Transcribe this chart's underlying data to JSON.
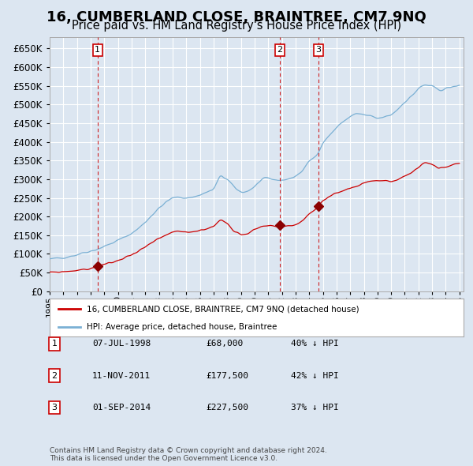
{
  "title": "16, CUMBERLAND CLOSE, BRAINTREE, CM7 9NQ",
  "subtitle": "Price paid vs. HM Land Registry's House Price Index (HPI)",
  "title_fontsize": 13,
  "subtitle_fontsize": 10.5,
  "background_color": "#dce6f1",
  "plot_bg_color": "#dce6f1",
  "grid_color": "#ffffff",
  "hpi_color": "#7ab0d4",
  "price_color": "#cc0000",
  "ylim": [
    0,
    680000
  ],
  "yticks": [
    0,
    50000,
    100000,
    150000,
    200000,
    250000,
    300000,
    350000,
    400000,
    450000,
    500000,
    550000,
    600000,
    650000
  ],
  "legend_label_price": "16, CUMBERLAND CLOSE, BRAINTREE, CM7 9NQ (detached house)",
  "legend_label_hpi": "HPI: Average price, detached house, Braintree",
  "transactions": [
    {
      "label": "1",
      "price": 68000,
      "x": 1998.51
    },
    {
      "label": "2",
      "price": 177500,
      "x": 2011.86
    },
    {
      "label": "3",
      "price": 227500,
      "x": 2014.67
    }
  ],
  "table_rows": [
    {
      "num": "1",
      "date": "07-JUL-1998",
      "price": "£68,000",
      "hpi": "40% ↓ HPI"
    },
    {
      "num": "2",
      "date": "11-NOV-2011",
      "price": "£177,500",
      "hpi": "42% ↓ HPI"
    },
    {
      "num": "3",
      "date": "01-SEP-2014",
      "price": "£227,500",
      "hpi": "37% ↓ HPI"
    }
  ],
  "footer": "Contains HM Land Registry data © Crown copyright and database right 2024.\nThis data is licensed under the Open Government Licence v3.0.",
  "vline_color": "#cc0000",
  "marker_color": "#8b0000",
  "box_color": "#cc0000",
  "hpi_waypoints_x": [
    1995.0,
    1995.5,
    1996.0,
    1996.5,
    1997.0,
    1997.5,
    1998.0,
    1998.5,
    1999.0,
    1999.5,
    2000.0,
    2000.5,
    2001.0,
    2001.5,
    2002.0,
    2002.5,
    2003.0,
    2003.5,
    2004.0,
    2004.5,
    2005.0,
    2005.5,
    2006.0,
    2006.5,
    2007.0,
    2007.5,
    2008.0,
    2008.5,
    2009.0,
    2009.5,
    2010.0,
    2010.5,
    2011.0,
    2011.5,
    2012.0,
    2012.5,
    2013.0,
    2013.5,
    2014.0,
    2014.5,
    2015.0,
    2015.5,
    2016.0,
    2016.5,
    2017.0,
    2017.5,
    2018.0,
    2018.5,
    2019.0,
    2019.5,
    2020.0,
    2020.5,
    2021.0,
    2021.5,
    2022.0,
    2022.5,
    2023.0,
    2023.5,
    2024.0,
    2024.5,
    2025.0
  ],
  "hpi_waypoints_y": [
    85000,
    88000,
    91000,
    94000,
    98000,
    104000,
    108000,
    113000,
    120000,
    128000,
    136000,
    145000,
    155000,
    168000,
    185000,
    205000,
    222000,
    238000,
    250000,
    252000,
    250000,
    252000,
    258000,
    265000,
    272000,
    310000,
    300000,
    278000,
    265000,
    268000,
    280000,
    298000,
    302000,
    298000,
    298000,
    300000,
    308000,
    322000,
    348000,
    362000,
    398000,
    418000,
    438000,
    455000,
    468000,
    476000,
    472000,
    468000,
    462000,
    466000,
    472000,
    488000,
    508000,
    522000,
    543000,
    553000,
    548000,
    538000,
    543000,
    547000,
    550000
  ],
  "price_waypoints_x": [
    1995.0,
    1995.5,
    1996.0,
    1996.5,
    1997.0,
    1997.5,
    1998.0,
    1998.5,
    1999.0,
    1999.5,
    2000.0,
    2000.5,
    2001.0,
    2001.5,
    2002.0,
    2002.5,
    2003.0,
    2003.5,
    2004.0,
    2004.5,
    2005.0,
    2005.5,
    2006.0,
    2006.5,
    2007.0,
    2007.5,
    2008.0,
    2008.5,
    2009.0,
    2009.5,
    2010.0,
    2010.5,
    2011.0,
    2011.5,
    2012.0,
    2012.5,
    2013.0,
    2013.5,
    2014.0,
    2014.5,
    2015.0,
    2015.5,
    2016.0,
    2016.5,
    2017.0,
    2017.5,
    2018.0,
    2018.5,
    2019.0,
    2019.5,
    2020.0,
    2020.5,
    2021.0,
    2021.5,
    2022.0,
    2022.5,
    2023.0,
    2023.5,
    2024.0,
    2024.5,
    2025.0
  ],
  "price_waypoints_y": [
    50000,
    51000,
    52500,
    54000,
    56000,
    58000,
    60000,
    68000,
    72000,
    76000,
    82000,
    90000,
    98000,
    108000,
    118000,
    130000,
    140000,
    150000,
    158000,
    160000,
    158000,
    160000,
    163000,
    168000,
    173000,
    192000,
    182000,
    162000,
    152000,
    155000,
    165000,
    174000,
    176000,
    173000,
    173000,
    175000,
    178000,
    188000,
    208000,
    220000,
    242000,
    252000,
    262000,
    270000,
    276000,
    282000,
    290000,
    296000,
    296000,
    296000,
    293000,
    298000,
    308000,
    318000,
    332000,
    346000,
    340000,
    328000,
    332000,
    338000,
    343000
  ]
}
